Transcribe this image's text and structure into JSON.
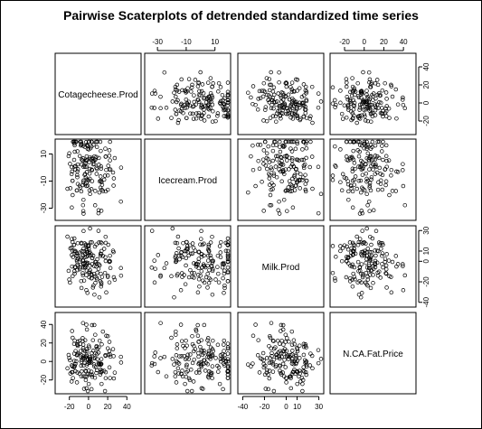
{
  "chart_data": {
    "type": "scatter-matrix",
    "title": "Pairwise Scaterplots of detrended standardized time series",
    "variables": [
      "Cotagecheese.Prod",
      "Icecream.Prod",
      "Milk.Prod",
      "N.CA.Fat.Price"
    ],
    "axis_ticks": {
      "Cotagecheese.Prod": [
        "-20",
        "0",
        "20",
        "40"
      ],
      "Icecream.Prod": [
        "-30",
        "-10",
        "10"
      ],
      "Milk.Prod": [
        "-40",
        "-20",
        "0",
        "10",
        "30"
      ],
      "N.CA.Fat.Price": [
        "-20",
        "0",
        "20",
        "40"
      ]
    },
    "tick_values": {
      "Cotagecheese.Prod": [
        -20,
        0,
        20,
        40
      ],
      "Icecream.Prod": [
        -30,
        -10,
        10
      ],
      "Milk.Prod": [
        -40,
        -20,
        0,
        10,
        30
      ],
      "N.CA.Fat.Price": [
        -20,
        0,
        20,
        40
      ]
    },
    "ranges": {
      "Cotagecheese.Prod": [
        -32,
        52
      ],
      "Icecream.Prod": [
        -37,
        19
      ],
      "Milk.Prod": [
        -42,
        32
      ],
      "N.CA.Fat.Price": [
        -32,
        50
      ]
    },
    "tick_placement": {
      "top": {
        "1": "Icecream.Prod",
        "3": "N.CA.Fat.Price"
      },
      "bottom": {
        "0": "Cotagecheese.Prod",
        "2": "Milk.Prod"
      },
      "left": {
        "1": "Icecream.Prod",
        "3": "N.CA.Fat.Price"
      },
      "right": {
        "0": "Cotagecheese.Prod",
        "2": "Milk.Prod"
      }
    },
    "points_per_panel": 160,
    "marker": "open-circle",
    "grid": false,
    "legend": "none"
  }
}
